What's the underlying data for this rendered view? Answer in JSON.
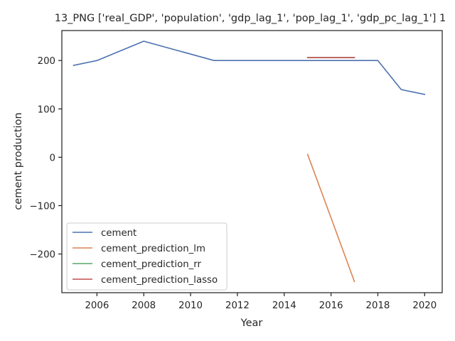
{
  "chart_data": {
    "type": "line",
    "title": "13_PNG ['real_GDP', 'population', 'gdp_lag_1', 'pop_lag_1', 'gdp_pc_lag_1'] 1",
    "xlabel": "Year",
    "ylabel": "cement production",
    "xlim": [
      2004.5,
      2020.75
    ],
    "ylim": [
      -280,
      262
    ],
    "xticks": [
      2006,
      2008,
      2010,
      2012,
      2014,
      2016,
      2018,
      2020
    ],
    "yticks": [
      -200,
      -100,
      0,
      100,
      200
    ],
    "grid": false,
    "legend_position": "lower-left",
    "series": [
      {
        "name": "cement",
        "color": "#4c72b0",
        "x": [
          2005,
          2006,
          2008,
          2011,
          2012,
          2013,
          2014,
          2015,
          2016,
          2017,
          2018,
          2019,
          2020
        ],
        "y": [
          190,
          200,
          240,
          200,
          200,
          200,
          200,
          200,
          200,
          200,
          200,
          140,
          130
        ]
      },
      {
        "name": "cement_prediction_lm",
        "color": "#dd8452",
        "x": [
          2015,
          2016,
          2017
        ],
        "y": [
          6,
          -125,
          -257
        ]
      },
      {
        "name": "cement_prediction_rr",
        "color": "#55a868",
        "x": [
          2015,
          2016,
          2017
        ],
        "y": [
          206,
          206,
          206
        ]
      },
      {
        "name": "cement_prediction_lasso",
        "color": "#c44e52",
        "x": [
          2015,
          2016,
          2017
        ],
        "y": [
          206,
          206,
          206
        ]
      }
    ]
  }
}
